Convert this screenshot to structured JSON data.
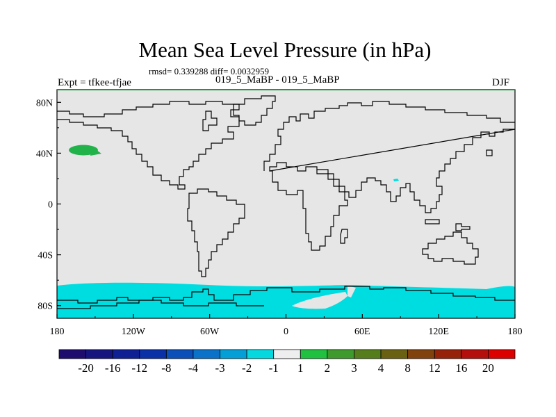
{
  "title": "Mean Sea Level Pressure (in hPa)",
  "stats": "rmsd= 0.339288 diff= 0.0032959",
  "expt": "Expt = tfkee-tfjae",
  "runs": "019_5_MaBP - 019_5_MaBP",
  "season": "DJF",
  "map": {
    "lon_range": [
      -180,
      180
    ],
    "lat_range": [
      -90,
      90
    ],
    "x_tick_labels": [
      "180",
      "120W",
      "60W",
      "0",
      "60E",
      "120E",
      "180"
    ],
    "y_tick_labels": [
      "80N",
      "40N",
      "0",
      "40S",
      "80S"
    ],
    "fill_colors": {
      "background": "#e6e6e6",
      "negative_1_2": "#00dde0",
      "positive_1_2": "#22b24a"
    },
    "frame_top_color": "#1a9a3c"
  },
  "colorbar": {
    "labels": [
      "-20",
      "-16",
      "-12",
      "-8",
      "-4",
      "-3",
      "-2",
      "-1",
      "1",
      "2",
      "3",
      "4",
      "8",
      "12",
      "16",
      "20"
    ],
    "colors": [
      "#1e0d6e",
      "#16147f",
      "#0f1f94",
      "#0a30a8",
      "#0b4fb8",
      "#0a72c8",
      "#049fd6",
      "#06d8e0",
      "#eeeeee",
      "#20c040",
      "#3f9a2e",
      "#567d1c",
      "#6a6212",
      "#82420e",
      "#97220a",
      "#b40f0c",
      "#dd0000"
    ]
  }
}
